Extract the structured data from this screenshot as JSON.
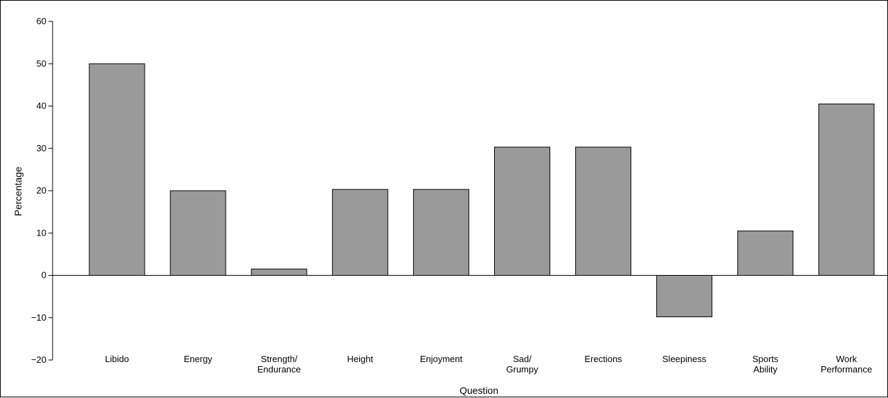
{
  "chart_data": {
    "type": "bar",
    "xlabel": "Question",
    "ylabel": "Percentage",
    "ylim": [
      -20,
      60
    ],
    "yticks": [
      60,
      50,
      40,
      30,
      20,
      10,
      0,
      -10,
      -20
    ],
    "ytick_labels": [
      "60",
      "50",
      "40",
      "30",
      "20",
      "10",
      "0",
      "−10",
      "−20"
    ],
    "grid": false,
    "categories": [
      [
        "Libido"
      ],
      [
        "Energy"
      ],
      [
        "Strength/",
        "Endurance"
      ],
      [
        "Height"
      ],
      [
        "Enjoyment"
      ],
      [
        "Sad/",
        "Grumpy"
      ],
      [
        "Erections"
      ],
      [
        "Sleepiness"
      ],
      [
        "Sports",
        "Ability"
      ],
      [
        "Work",
        "Performance"
      ]
    ],
    "values": [
      50,
      20,
      1.5,
      20.3,
      20.3,
      30.3,
      30.3,
      -9.8,
      10.5,
      40.5
    ],
    "colors": {
      "bar": "#9a9a9a",
      "stroke": "#000000"
    }
  }
}
